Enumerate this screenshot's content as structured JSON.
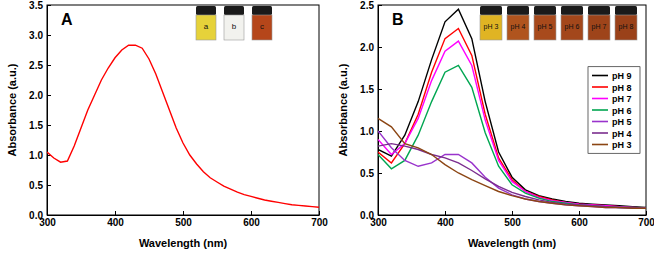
{
  "chart_data": [
    {
      "type": "line",
      "title": "A",
      "x_label": "Wavelength (nm)",
      "y_label": "Absorbance (a.u.)",
      "grid": false,
      "x": [
        300,
        310,
        320,
        330,
        340,
        350,
        360,
        370,
        380,
        390,
        400,
        410,
        420,
        430,
        440,
        450,
        460,
        470,
        480,
        490,
        500,
        510,
        520,
        530,
        540,
        550,
        560,
        570,
        580,
        590,
        600,
        610,
        620,
        630,
        640,
        650,
        660,
        670,
        680,
        690,
        700
      ],
      "series": [
        {
          "color": "#ff0000",
          "values": [
            1.05,
            0.95,
            0.88,
            0.9,
            1.15,
            1.45,
            1.75,
            2.0,
            2.25,
            2.45,
            2.62,
            2.75,
            2.83,
            2.83,
            2.78,
            2.6,
            2.35,
            2.05,
            1.75,
            1.45,
            1.2,
            1.0,
            0.85,
            0.72,
            0.62,
            0.55,
            0.48,
            0.43,
            0.38,
            0.34,
            0.31,
            0.28,
            0.25,
            0.23,
            0.21,
            0.19,
            0.17,
            0.16,
            0.15,
            0.14,
            0.13
          ]
        }
      ],
      "xlim": [
        300,
        700
      ],
      "xticks": [
        300,
        400,
        500,
        600,
        700
      ],
      "ylim": [
        0,
        3.5
      ],
      "yticks": [
        {
          "value": 0,
          "label": "0.0"
        },
        {
          "value": 0.5,
          "label": "0.5"
        },
        {
          "value": 1,
          "label": "1.0"
        },
        {
          "value": 1.5,
          "label": "1.5"
        },
        {
          "value": 2,
          "label": "2.0"
        },
        {
          "value": 2.5,
          "label": "2.5"
        },
        {
          "value": 3,
          "label": "3.0"
        },
        {
          "value": 3.5,
          "label": "3.5"
        }
      ],
      "inset": {
        "labels": [
          "a",
          "b",
          "c"
        ],
        "colors": [
          "#e6d23a",
          "#f2f2ee",
          "#b5461a"
        ]
      }
    },
    {
      "type": "line",
      "title": "B",
      "x_label": "Wavelength (nm)",
      "y_label": "Absorbance (a.u.)",
      "grid": false,
      "legend": "right",
      "x": [
        300,
        320,
        340,
        360,
        380,
        400,
        420,
        440,
        460,
        480,
        500,
        520,
        540,
        560,
        580,
        600,
        620,
        640,
        660,
        680,
        700
      ],
      "series": [
        {
          "name": "pH 9",
          "color": "#000000",
          "values": [
            0.78,
            0.7,
            0.95,
            1.35,
            1.85,
            2.3,
            2.45,
            2.1,
            1.35,
            0.75,
            0.45,
            0.3,
            0.23,
            0.19,
            0.16,
            0.14,
            0.13,
            0.12,
            0.11,
            0.1,
            0.09
          ]
        },
        {
          "name": "pH 8",
          "color": "#ff0000",
          "values": [
            0.75,
            0.62,
            0.85,
            1.2,
            1.7,
            2.1,
            2.22,
            1.9,
            1.2,
            0.68,
            0.42,
            0.28,
            0.22,
            0.18,
            0.15,
            0.13,
            0.12,
            0.11,
            0.1,
            0.09,
            0.08
          ]
        },
        {
          "name": "pH 7",
          "color": "#ff00ff",
          "values": [
            0.9,
            0.72,
            0.85,
            1.15,
            1.6,
            1.95,
            2.07,
            1.78,
            1.13,
            0.65,
            0.4,
            0.28,
            0.21,
            0.17,
            0.15,
            0.13,
            0.12,
            0.11,
            0.1,
            0.09,
            0.08
          ]
        },
        {
          "name": "pH 6",
          "color": "#00a651",
          "values": [
            0.72,
            0.55,
            0.65,
            0.95,
            1.35,
            1.7,
            1.78,
            1.52,
            0.98,
            0.58,
            0.36,
            0.26,
            0.2,
            0.16,
            0.14,
            0.12,
            0.11,
            0.1,
            0.09,
            0.09,
            0.08
          ]
        },
        {
          "name": "pH 5",
          "color": "#9933cc",
          "values": [
            1.0,
            0.8,
            0.65,
            0.58,
            0.62,
            0.72,
            0.72,
            0.62,
            0.45,
            0.32,
            0.24,
            0.19,
            0.16,
            0.14,
            0.12,
            0.11,
            0.1,
            0.09,
            0.09,
            0.08,
            0.08
          ]
        },
        {
          "name": "pH 4",
          "color": "#7b2d8e",
          "values": [
            0.82,
            0.85,
            0.82,
            0.78,
            0.72,
            0.68,
            0.62,
            0.53,
            0.43,
            0.34,
            0.27,
            0.22,
            0.18,
            0.15,
            0.13,
            0.12,
            0.11,
            0.1,
            0.09,
            0.09,
            0.08
          ]
        },
        {
          "name": "pH 3",
          "color": "#8b4513",
          "values": [
            1.15,
            1.05,
            0.85,
            0.8,
            0.72,
            0.6,
            0.5,
            0.42,
            0.35,
            0.28,
            0.23,
            0.19,
            0.16,
            0.14,
            0.12,
            0.11,
            0.1,
            0.09,
            0.09,
            0.08,
            0.08
          ]
        }
      ],
      "xlim": [
        300,
        700
      ],
      "xticks": [
        300,
        400,
        500,
        600,
        700
      ],
      "ylim": [
        0,
        2.5
      ],
      "yticks": [
        {
          "value": 0,
          "label": "0.0"
        },
        {
          "value": 0.5,
          "label": "0.5"
        },
        {
          "value": 1,
          "label": "1.0"
        },
        {
          "value": 1.5,
          "label": "1.5"
        },
        {
          "value": 2,
          "label": "2.0"
        },
        {
          "value": 2.5,
          "label": "2.5"
        }
      ],
      "inset": {
        "labels": [
          "pH 3",
          "pH 4",
          "pH 5",
          "pH 6",
          "pH 7",
          "pH 8"
        ],
        "colors": [
          "#e0b423",
          "#b0541e",
          "#a84a1c",
          "#a3471b",
          "#9e441a",
          "#9a4119"
        ]
      }
    }
  ]
}
